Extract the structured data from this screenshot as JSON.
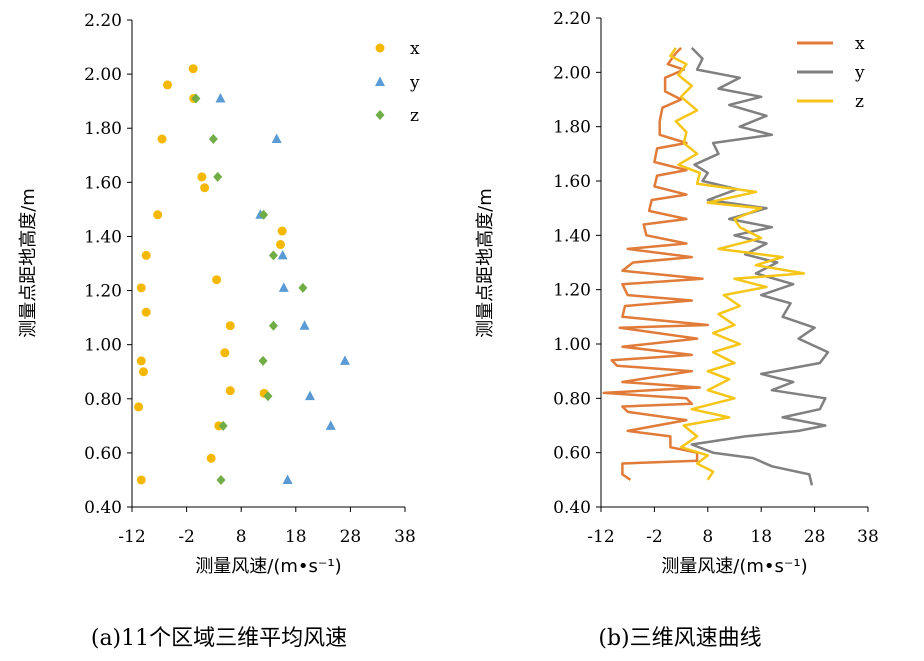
{
  "chart_data": [
    {
      "type": "scatter",
      "caption": "(a)11个区域三维平均风速",
      "xlabel": "测量风速/(m•s⁻¹)",
      "ylabel": "测量点距地高度/m",
      "xlim": [
        -12,
        38
      ],
      "ylim": [
        0.4,
        2.2
      ],
      "xticks": [
        "-12",
        "-2",
        "8",
        "18",
        "28",
        "38"
      ],
      "yticks": [
        "0.40",
        "0.60",
        "0.80",
        "1.00",
        "1.20",
        "1.40",
        "1.60",
        "1.80",
        "2.00",
        "2.20"
      ],
      "legend_position": "top-right",
      "series": [
        {
          "name": "x",
          "marker": "circle",
          "color": "#F5B800",
          "points": [
            [
              -0.8,
              2.02
            ],
            [
              -5.5,
              1.96
            ],
            [
              -0.7,
              1.91
            ],
            [
              -6.5,
              1.76
            ],
            [
              0.8,
              1.62
            ],
            [
              1.3,
              1.58
            ],
            [
              -7.3,
              1.48
            ],
            [
              15.5,
              1.42
            ],
            [
              15.2,
              1.37
            ],
            [
              -9.4,
              1.33
            ],
            [
              3.5,
              1.24
            ],
            [
              -10.3,
              1.21
            ],
            [
              -9.4,
              1.12
            ],
            [
              6.0,
              1.07
            ],
            [
              -10.3,
              0.94
            ],
            [
              5.0,
              0.97
            ],
            [
              -9.9,
              0.9
            ],
            [
              6.0,
              0.83
            ],
            [
              12.2,
              0.82
            ],
            [
              -10.8,
              0.77
            ],
            [
              3.9,
              0.7
            ],
            [
              2.5,
              0.58
            ],
            [
              -10.3,
              0.5
            ]
          ]
        },
        {
          "name": "y",
          "marker": "triangle",
          "color": "#5B9BD5",
          "points": [
            [
              4.2,
              1.91
            ],
            [
              14.5,
              1.76
            ],
            [
              11.5,
              1.48
            ],
            [
              15.6,
              1.33
            ],
            [
              15.8,
              1.21
            ],
            [
              19.6,
              1.07
            ],
            [
              27.0,
              0.94
            ],
            [
              20.6,
              0.81
            ],
            [
              24.4,
              0.7
            ],
            [
              16.5,
              0.5
            ]
          ]
        },
        {
          "name": "z",
          "marker": "diamond",
          "color": "#70AD47",
          "points": [
            [
              -0.3,
              1.91
            ],
            [
              2.9,
              1.76
            ],
            [
              3.7,
              1.62
            ],
            [
              12.1,
              1.48
            ],
            [
              13.9,
              1.33
            ],
            [
              19.3,
              1.21
            ],
            [
              13.9,
              1.07
            ],
            [
              12.0,
              0.94
            ],
            [
              12.9,
              0.81
            ],
            [
              4.7,
              0.7
            ],
            [
              4.3,
              0.5
            ]
          ]
        }
      ]
    },
    {
      "type": "line",
      "caption": "(b)三维风速曲线",
      "xlabel": "测量风速/(m•s⁻¹)",
      "ylabel": "测量点距地高度/m",
      "xlim": [
        -12,
        38
      ],
      "ylim": [
        0.4,
        2.2
      ],
      "xticks": [
        "-12",
        "-2",
        "8",
        "18",
        "28",
        "38"
      ],
      "yticks": [
        "0.40",
        "0.60",
        "0.80",
        "1.00",
        "1.20",
        "1.40",
        "1.60",
        "1.80",
        "2.00",
        "2.20"
      ],
      "legend_position": "top-right",
      "series": [
        {
          "name": "x",
          "color": "#E07B39",
          "points": [
            [
              -6.5,
              0.5
            ],
            [
              -8.0,
              0.52
            ],
            [
              -8.0,
              0.56
            ],
            [
              6.0,
              0.57
            ],
            [
              6.0,
              0.6
            ],
            [
              1.0,
              0.62
            ],
            [
              1.0,
              0.66
            ],
            [
              -7.0,
              0.68
            ],
            [
              4.0,
              0.72
            ],
            [
              -7.0,
              0.75
            ],
            [
              -8.0,
              0.77
            ],
            [
              5.0,
              0.78
            ],
            [
              4.0,
              0.8
            ],
            [
              -11.5,
              0.82
            ],
            [
              6.5,
              0.84
            ],
            [
              -8.0,
              0.86
            ],
            [
              5.0,
              0.9
            ],
            [
              -9.0,
              0.92
            ],
            [
              -10.0,
              0.94
            ],
            [
              5.0,
              0.96
            ],
            [
              -8.0,
              0.99
            ],
            [
              6.0,
              1.02
            ],
            [
              -8.5,
              1.06
            ],
            [
              8.0,
              1.07
            ],
            [
              -8.0,
              1.1
            ],
            [
              -7.5,
              1.14
            ],
            [
              5.0,
              1.16
            ],
            [
              -7.0,
              1.18
            ],
            [
              -8.0,
              1.22
            ],
            [
              7.0,
              1.24
            ],
            [
              -8.0,
              1.27
            ],
            [
              -6.0,
              1.3
            ],
            [
              5.0,
              1.32
            ],
            [
              -7.0,
              1.35
            ],
            [
              4.0,
              1.37
            ],
            [
              -3.5,
              1.4
            ],
            [
              -4.0,
              1.44
            ],
            [
              4.0,
              1.46
            ],
            [
              -3.0,
              1.49
            ],
            [
              -2.5,
              1.53
            ],
            [
              4.0,
              1.55
            ],
            [
              -2.0,
              1.58
            ],
            [
              -1.5,
              1.62
            ],
            [
              4.0,
              1.64
            ],
            [
              -2.0,
              1.67
            ],
            [
              -1.5,
              1.72
            ],
            [
              4.0,
              1.74
            ],
            [
              -1.0,
              1.77
            ],
            [
              -1.0,
              1.82
            ],
            [
              -0.5,
              1.87
            ],
            [
              3.0,
              1.9
            ],
            [
              0.0,
              1.93
            ],
            [
              0.0,
              1.98
            ],
            [
              3.5,
              2.01
            ],
            [
              0.5,
              2.03
            ],
            [
              2.0,
              2.07
            ],
            [
              3.0,
              2.09
            ]
          ]
        },
        {
          "name": "y",
          "color": "#808080",
          "points": [
            [
              27.5,
              0.48
            ],
            [
              27.0,
              0.52
            ],
            [
              20.0,
              0.55
            ],
            [
              16.5,
              0.58
            ],
            [
              9.0,
              0.6
            ],
            [
              5.0,
              0.63
            ],
            [
              15.0,
              0.66
            ],
            [
              25.0,
              0.68
            ],
            [
              30.0,
              0.7
            ],
            [
              22.0,
              0.73
            ],
            [
              29.0,
              0.76
            ],
            [
              30.0,
              0.8
            ],
            [
              20.0,
              0.83
            ],
            [
              24.0,
              0.86
            ],
            [
              18.0,
              0.89
            ],
            [
              29.0,
              0.93
            ],
            [
              30.5,
              0.97
            ],
            [
              25.0,
              1.02
            ],
            [
              28.0,
              1.06
            ],
            [
              22.0,
              1.1
            ],
            [
              23.5,
              1.15
            ],
            [
              18.0,
              1.18
            ],
            [
              24.0,
              1.22
            ],
            [
              17.0,
              1.26
            ],
            [
              21.0,
              1.3
            ],
            [
              15.0,
              1.33
            ],
            [
              19.0,
              1.37
            ],
            [
              13.0,
              1.4
            ],
            [
              20.0,
              1.43
            ],
            [
              12.0,
              1.46
            ],
            [
              19.0,
              1.5
            ],
            [
              8.0,
              1.53
            ],
            [
              13.5,
              1.57
            ],
            [
              7.0,
              1.6
            ],
            [
              8.0,
              1.63
            ],
            [
              5.5,
              1.66
            ],
            [
              10.0,
              1.7
            ],
            [
              9.0,
              1.74
            ],
            [
              20.0,
              1.77
            ],
            [
              14.0,
              1.8
            ],
            [
              19.0,
              1.84
            ],
            [
              12.0,
              1.88
            ],
            [
              18.0,
              1.91
            ],
            [
              10.0,
              1.94
            ],
            [
              14.0,
              1.98
            ],
            [
              6.0,
              2.01
            ],
            [
              7.0,
              2.05
            ],
            [
              5.0,
              2.09
            ]
          ]
        },
        {
          "name": "z",
          "color": "#F5C518",
          "points": [
            [
              8.0,
              0.5
            ],
            [
              9.0,
              0.53
            ],
            [
              6.0,
              0.56
            ],
            [
              8.0,
              0.59
            ],
            [
              3.0,
              0.62
            ],
            [
              6.0,
              0.66
            ],
            [
              3.5,
              0.7
            ],
            [
              12.0,
              0.73
            ],
            [
              5.0,
              0.76
            ],
            [
              13.0,
              0.8
            ],
            [
              8.0,
              0.83
            ],
            [
              12.0,
              0.87
            ],
            [
              8.0,
              0.9
            ],
            [
              13.0,
              0.93
            ],
            [
              9.0,
              0.97
            ],
            [
              14.0,
              1.0
            ],
            [
              9.0,
              1.04
            ],
            [
              13.0,
              1.07
            ],
            [
              10.0,
              1.11
            ],
            [
              14.0,
              1.14
            ],
            [
              11.0,
              1.18
            ],
            [
              19.0,
              1.21
            ],
            [
              13.0,
              1.24
            ],
            [
              26.0,
              1.26
            ],
            [
              17.0,
              1.29
            ],
            [
              22.0,
              1.32
            ],
            [
              10.0,
              1.35
            ],
            [
              18.0,
              1.39
            ],
            [
              14.0,
              1.43
            ],
            [
              13.0,
              1.46
            ],
            [
              18.0,
              1.5
            ],
            [
              8.0,
              1.52
            ],
            [
              17.0,
              1.56
            ],
            [
              6.0,
              1.59
            ],
            [
              6.5,
              1.63
            ],
            [
              2.5,
              1.66
            ],
            [
              6.0,
              1.7
            ],
            [
              3.5,
              1.74
            ],
            [
              4.0,
              1.78
            ],
            [
              2.0,
              1.82
            ],
            [
              6.0,
              1.86
            ],
            [
              3.0,
              1.91
            ],
            [
              5.0,
              1.95
            ],
            [
              2.5,
              1.99
            ],
            [
              4.0,
              2.03
            ],
            [
              1.0,
              2.06
            ],
            [
              2.0,
              2.09
            ]
          ]
        }
      ]
    }
  ]
}
